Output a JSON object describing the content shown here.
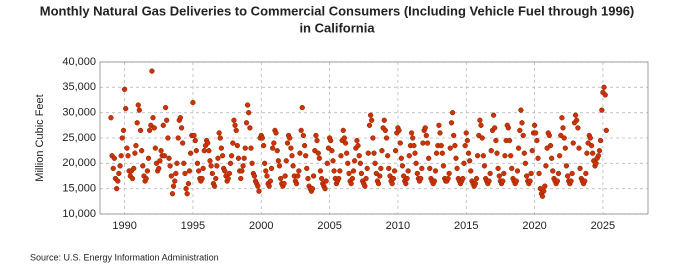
{
  "chart_data": {
    "type": "scatter",
    "title": [
      "Monthly Natural Gas Deliveries to Commercial Consumers (Including Vehicle Fuel through 1996)",
      "in California"
    ],
    "y_label": "Million Cubic Feet",
    "source": "Source: U.S. Energy Information Administration",
    "color": "#cc3300",
    "grid": true,
    "xlim": [
      1988.2,
      2028.3
    ],
    "xticks": [
      1990,
      1995,
      2000,
      2005,
      2010,
      2015,
      2020,
      2025
    ],
    "ylim": [
      10000,
      40000
    ],
    "yticks": [
      {
        "value": 10000,
        "label": "10,000"
      },
      {
        "value": 15000,
        "label": "15,000"
      },
      {
        "value": 20000,
        "label": "20,000"
      },
      {
        "value": 25000,
        "label": "25,000"
      },
      {
        "value": 30000,
        "label": "30,000"
      },
      {
        "value": 35000,
        "label": "35,000"
      },
      {
        "value": 40000,
        "label": "40,000"
      }
    ],
    "x": [
      1989.0,
      1989.08,
      1989.17,
      1989.25,
      1989.33,
      1989.42,
      1989.5,
      1989.58,
      1989.67,
      1989.75,
      1989.83,
      1989.92,
      1990.0,
      1990.08,
      1990.17,
      1990.25,
      1990.33,
      1990.42,
      1990.5,
      1990.58,
      1990.67,
      1990.75,
      1990.83,
      1990.92,
      1991.0,
      1991.08,
      1991.17,
      1991.25,
      1991.33,
      1991.42,
      1991.5,
      1991.58,
      1991.67,
      1991.75,
      1991.83,
      1991.92,
      1992.0,
      1992.08,
      1992.17,
      1992.25,
      1992.33,
      1992.42,
      1992.5,
      1992.58,
      1992.67,
      1992.75,
      1992.83,
      1992.92,
      1993.0,
      1993.08,
      1993.17,
      1993.25,
      1993.33,
      1993.42,
      1993.5,
      1993.58,
      1993.67,
      1993.75,
      1993.83,
      1993.92,
      1994.0,
      1994.08,
      1994.17,
      1994.25,
      1994.33,
      1994.42,
      1994.5,
      1994.58,
      1994.67,
      1994.75,
      1994.83,
      1994.92,
      1995.0,
      1995.08,
      1995.17,
      1995.25,
      1995.33,
      1995.42,
      1995.5,
      1995.58,
      1995.67,
      1995.75,
      1995.83,
      1995.92,
      1996.0,
      1996.08,
      1996.17,
      1996.25,
      1996.33,
      1996.42,
      1996.5,
      1996.58,
      1996.67,
      1996.75,
      1996.83,
      1996.92,
      1997.0,
      1997.08,
      1997.17,
      1997.25,
      1997.33,
      1997.42,
      1997.5,
      1997.58,
      1997.67,
      1997.75,
      1997.83,
      1997.92,
      1998.0,
      1998.08,
      1998.17,
      1998.25,
      1998.33,
      1998.42,
      1998.5,
      1998.58,
      1998.67,
      1998.75,
      1998.83,
      1998.92,
      1999.0,
      1999.08,
      1999.17,
      1999.25,
      1999.33,
      1999.42,
      1999.5,
      1999.58,
      1999.67,
      1999.75,
      1999.83,
      1999.92,
      2000.0,
      2000.08,
      2000.17,
      2000.25,
      2000.33,
      2000.42,
      2000.5,
      2000.58,
      2000.67,
      2000.75,
      2000.83,
      2000.92,
      2001.0,
      2001.08,
      2001.17,
      2001.25,
      2001.33,
      2001.42,
      2001.5,
      2001.58,
      2001.67,
      2001.75,
      2001.83,
      2001.92,
      2002.0,
      2002.08,
      2002.17,
      2002.25,
      2002.33,
      2002.42,
      2002.5,
      2002.58,
      2002.67,
      2002.75,
      2002.83,
      2002.92,
      2003.0,
      2003.08,
      2003.17,
      2003.25,
      2003.33,
      2003.42,
      2003.5,
      2003.58,
      2003.67,
      2003.75,
      2003.83,
      2003.92,
      2004.0,
      2004.08,
      2004.17,
      2004.25,
      2004.33,
      2004.42,
      2004.5,
      2004.58,
      2004.67,
      2004.75,
      2004.83,
      2004.92,
      2005.0,
      2005.08,
      2005.17,
      2005.25,
      2005.33,
      2005.42,
      2005.5,
      2005.58,
      2005.67,
      2005.75,
      2005.83,
      2005.92,
      2006.0,
      2006.08,
      2006.17,
      2006.25,
      2006.33,
      2006.42,
      2006.5,
      2006.58,
      2006.67,
      2006.75,
      2006.83,
      2006.92,
      2007.0,
      2007.08,
      2007.17,
      2007.25,
      2007.33,
      2007.42,
      2007.5,
      2007.58,
      2007.67,
      2007.75,
      2007.83,
      2007.92,
      2008.0,
      2008.08,
      2008.17,
      2008.25,
      2008.33,
      2008.42,
      2008.5,
      2008.58,
      2008.67,
      2008.75,
      2008.83,
      2008.92,
      2009.0,
      2009.08,
      2009.17,
      2009.25,
      2009.33,
      2009.42,
      2009.5,
      2009.58,
      2009.67,
      2009.75,
      2009.83,
      2009.92,
      2010.0,
      2010.08,
      2010.17,
      2010.25,
      2010.33,
      2010.42,
      2010.5,
      2010.58,
      2010.67,
      2010.75,
      2010.83,
      2010.92,
      2011.0,
      2011.08,
      2011.17,
      2011.25,
      2011.33,
      2011.42,
      2011.5,
      2011.58,
      2011.67,
      2011.75,
      2011.83,
      2011.92,
      2012.0,
      2012.08,
      2012.17,
      2012.25,
      2012.33,
      2012.42,
      2012.5,
      2012.58,
      2012.67,
      2012.75,
      2012.83,
      2012.92,
      2013.0,
      2013.08,
      2013.17,
      2013.25,
      2013.33,
      2013.42,
      2013.5,
      2013.58,
      2013.67,
      2013.75,
      2013.83,
      2013.92,
      2014.0,
      2014.08,
      2014.17,
      2014.25,
      2014.33,
      2014.42,
      2014.5,
      2014.58,
      2014.67,
      2014.75,
      2014.83,
      2014.92,
      2015.0,
      2015.08,
      2015.17,
      2015.25,
      2015.33,
      2015.42,
      2015.5,
      2015.58,
      2015.67,
      2015.75,
      2015.83,
      2015.92,
      2016.0,
      2016.08,
      2016.17,
      2016.25,
      2016.33,
      2016.42,
      2016.5,
      2016.58,
      2016.67,
      2016.75,
      2016.83,
      2016.92,
      2017.0,
      2017.08,
      2017.17,
      2017.25,
      2017.33,
      2017.42,
      2017.5,
      2017.58,
      2017.67,
      2017.75,
      2017.83,
      2017.92,
      2018.0,
      2018.08,
      2018.17,
      2018.25,
      2018.33,
      2018.42,
      2018.5,
      2018.58,
      2018.67,
      2018.75,
      2018.83,
      2018.92,
      2019.0,
      2019.08,
      2019.17,
      2019.25,
      2019.33,
      2019.42,
      2019.5,
      2019.58,
      2019.67,
      2019.75,
      2019.83,
      2019.92,
      2020.0,
      2020.08,
      2020.17,
      2020.25,
      2020.33,
      2020.42,
      2020.5,
      2020.58,
      2020.67,
      2020.75,
      2020.83,
      2020.92,
      2021.0,
      2021.08,
      2021.17,
      2021.25,
      2021.33,
      2021.42,
      2021.5,
      2021.58,
      2021.67,
      2021.75,
      2021.83,
      2021.92,
      2022.0,
      2022.08,
      2022.17,
      2022.25,
      2022.33,
      2022.42,
      2022.5,
      2022.58,
      2022.67,
      2022.75,
      2022.83,
      2022.92,
      2023.0,
      2023.08,
      2023.17,
      2023.25,
      2023.33,
      2023.42,
      2023.5,
      2023.58,
      2023.67,
      2023.75,
      2023.83,
      2023.92,
      2024.0,
      2024.08,
      2024.17,
      2024.25,
      2024.33,
      2024.42,
      2024.5,
      2024.58,
      2024.67,
      2024.75,
      2024.83,
      2024.92,
      2025.0,
      2025.08,
      2025.17,
      2025.25
    ],
    "values": [
      29000,
      21500,
      19000,
      21000,
      17000,
      15000,
      16500,
      18000,
      19500,
      21500,
      25000,
      26500,
      34600,
      30800,
      23000,
      21500,
      18500,
      17500,
      18500,
      17000,
      19000,
      22000,
      23500,
      28000,
      31500,
      30500,
      26500,
      22500,
      19500,
      17500,
      16500,
      17000,
      18500,
      21000,
      26500,
      27500,
      38200,
      29000,
      27000,
      23000,
      20000,
      18500,
      19000,
      20500,
      22500,
      21500,
      27500,
      21500,
      31000,
      28500,
      25000,
      21000,
      19500,
      17500,
      14000,
      15500,
      16500,
      18000,
      20000,
      25000,
      28500,
      29000,
      27000,
      24000,
      20000,
      18000,
      15000,
      14000,
      16000,
      18500,
      22000,
      25500,
      32000,
      25500,
      24500,
      22500,
      20000,
      18500,
      17000,
      16500,
      17000,
      19000,
      22500,
      23500,
      24500,
      24000,
      22500,
      20500,
      19500,
      18000,
      16000,
      15500,
      17000,
      19500,
      21000,
      26000,
      25000,
      23000,
      21500,
      19000,
      18500,
      17500,
      16500,
      17000,
      18000,
      20000,
      21500,
      24000,
      28500,
      27500,
      26500,
      23500,
      21000,
      18500,
      17000,
      18500,
      19500,
      21000,
      23000,
      28000,
      31500,
      30000,
      27000,
      23000,
      20000,
      18000,
      17500,
      16500,
      16000,
      15500,
      14500,
      25000,
      25500,
      25000,
      23500,
      20000,
      18500,
      17500,
      16000,
      15500,
      16500,
      19000,
      23000,
      24000,
      26500,
      26000,
      22500,
      20500,
      19500,
      17000,
      16000,
      15500,
      16000,
      17500,
      20500,
      24000,
      25500,
      25000,
      23000,
      21500,
      19500,
      17500,
      16500,
      16000,
      17500,
      18500,
      22000,
      26500,
      31000,
      25500,
      23500,
      21500,
      19000,
      17000,
      15500,
      15000,
      14500,
      15000,
      17500,
      22500,
      25500,
      24500,
      22000,
      21000,
      18500,
      17000,
      16000,
      15500,
      15000,
      16500,
      20000,
      23000,
      25000,
      24500,
      22500,
      20500,
      18500,
      17000,
      16000,
      16500,
      17000,
      18500,
      21500,
      24500,
      26500,
      25000,
      24000,
      22000,
      20000,
      18000,
      16500,
      16000,
      17000,
      18500,
      20500,
      23000,
      24500,
      23500,
      21500,
      20000,
      18000,
      16500,
      16000,
      15500,
      17000,
      19000,
      22000,
      27500,
      29500,
      28500,
      25000,
      22000,
      20000,
      18000,
      16500,
      16000,
      17500,
      19000,
      22500,
      27000,
      28500,
      26500,
      25000,
      21500,
      19000,
      17500,
      16500,
      16000,
      17000,
      18500,
      22500,
      26000,
      27000,
      26500,
      24000,
      21000,
      19500,
      17500,
      16500,
      16000,
      17000,
      18500,
      21500,
      23500,
      26000,
      25000,
      23500,
      22000,
      20000,
      18000,
      17000,
      16500,
      17000,
      19000,
      24000,
      26500,
      27000,
      25500,
      24000,
      21000,
      19000,
      17000,
      16500,
      16000,
      16500,
      18500,
      22000,
      23500,
      27500,
      26000,
      23500,
      22000,
      19500,
      17000,
      16500,
      16500,
      17000,
      18000,
      23000,
      28000,
      30000,
      25500,
      23500,
      21000,
      19000,
      17000,
      16500,
      16000,
      16500,
      17000,
      20000,
      23500,
      26000,
      24500,
      22000,
      20500,
      18500,
      16500,
      16000,
      15500,
      16000,
      17000,
      21500,
      25500,
      28500,
      27500,
      25000,
      21500,
      19500,
      17000,
      16500,
      16000,
      16500,
      18000,
      22500,
      26500,
      29500,
      27000,
      24500,
      22000,
      19000,
      17500,
      16500,
      16000,
      16500,
      18000,
      21500,
      24500,
      27500,
      27000,
      24500,
      21500,
      19000,
      17000,
      16500,
      16000,
      16500,
      18500,
      23000,
      26500,
      30500,
      28000,
      25500,
      22000,
      20000,
      17500,
      16500,
      16000,
      16500,
      18000,
      22500,
      26000,
      27500,
      26000,
      24500,
      21000,
      18000,
      15000,
      14000,
      13500,
      14500,
      15500,
      19500,
      23000,
      26000,
      25500,
      23500,
      21000,
      18500,
      17000,
      16500,
      16000,
      16500,
      18000,
      21500,
      25500,
      29000,
      27000,
      25000,
      23000,
      19500,
      17500,
      16500,
      16000,
      16500,
      18000,
      24000,
      28000,
      29500,
      28500,
      27000,
      23000,
      19000,
      17000,
      16500,
      16000,
      16500,
      18000,
      22000,
      24000,
      25500,
      25000,
      23500,
      22000,
      20500,
      19500,
      20000,
      21000,
      21500,
      22500,
      24500,
      30500,
      34000,
      35000,
      33500,
      26500
    ]
  }
}
